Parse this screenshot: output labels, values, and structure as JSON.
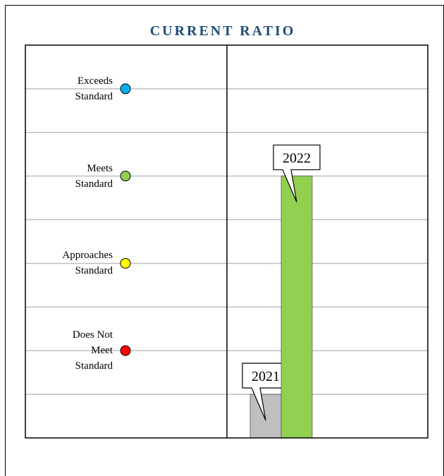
{
  "chart_data": {
    "type": "bar",
    "title": "CURRENT RATIO",
    "categories": [
      "2021",
      "2022"
    ],
    "values": [
      1,
      6
    ],
    "colors": [
      "#bfbfbf",
      "#92d050"
    ],
    "ylim": [
      0,
      9
    ],
    "yticks": [
      1,
      2,
      3,
      4,
      5,
      6,
      7,
      8
    ],
    "grid": true,
    "standards": [
      {
        "label": "Exceeds\nStandard",
        "value": 8,
        "color": "#00b0f0"
      },
      {
        "label": "Meets\nStandard",
        "value": 6,
        "color": "#92d050"
      },
      {
        "label": "Approaches\nStandard",
        "value": 4,
        "color": "#ffff00"
      },
      {
        "label": "Does Not\nMeet\nStandard",
        "value": 2,
        "color": "#ff0000"
      }
    ]
  }
}
